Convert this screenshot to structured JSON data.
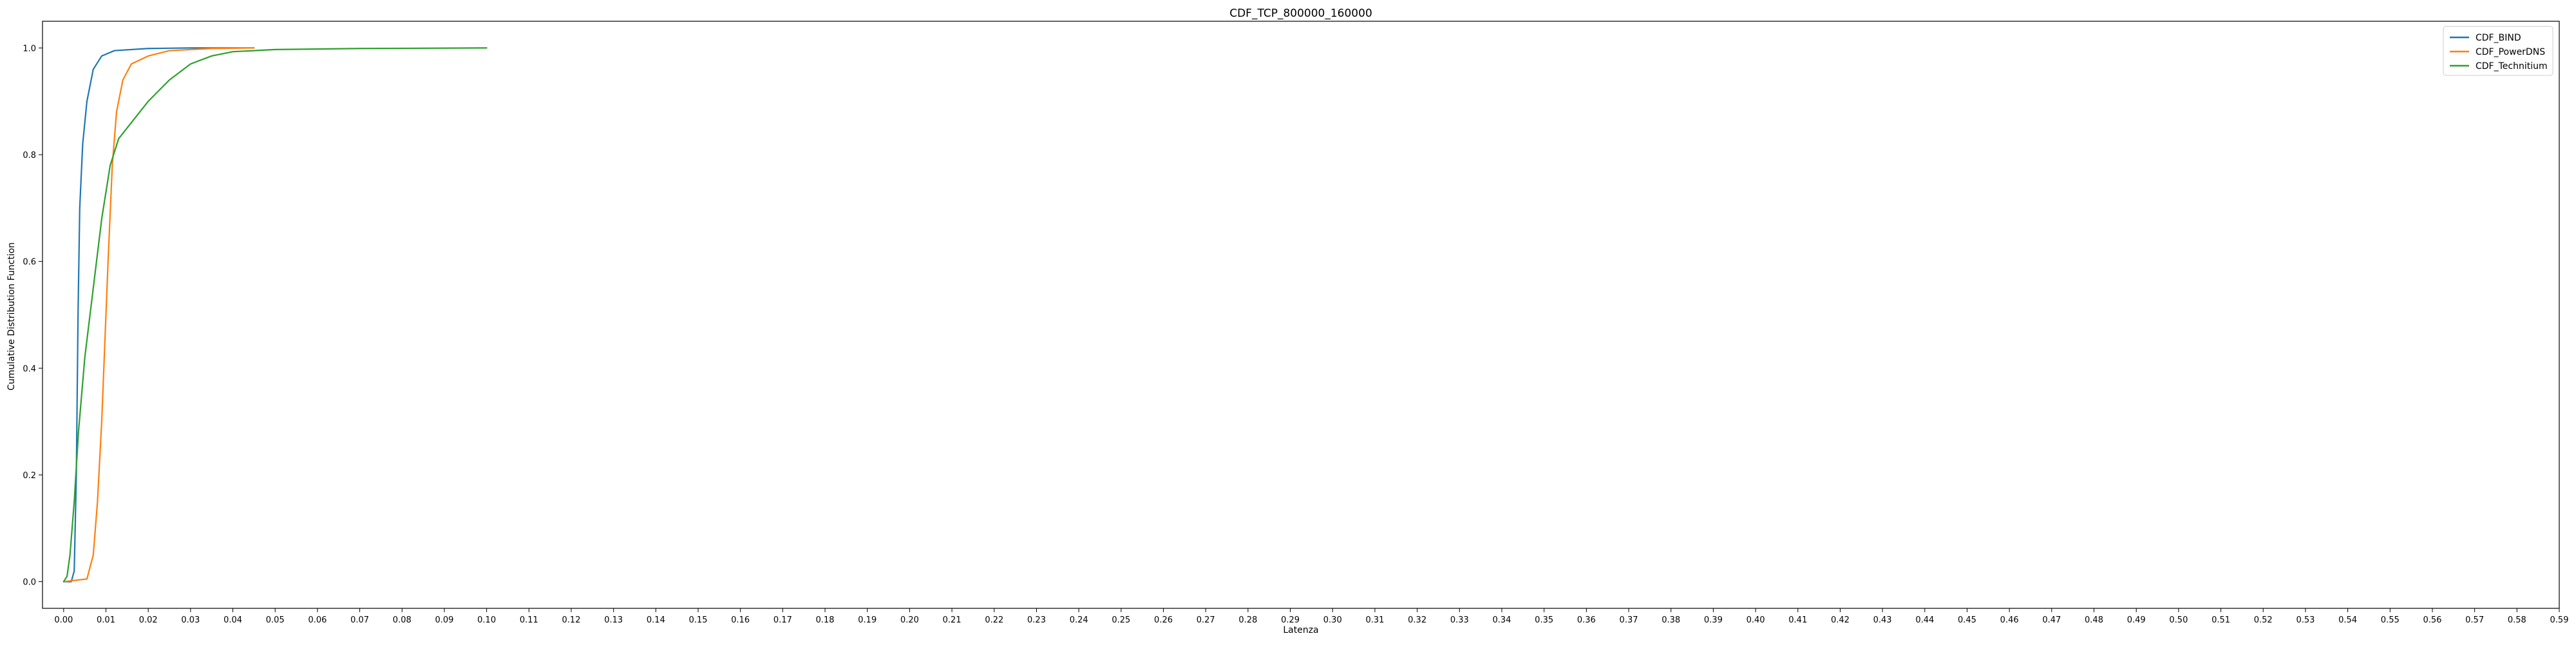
{
  "chart_data": {
    "type": "line",
    "title": "CDF_TCP_800000_160000",
    "xlabel": "Latenza",
    "ylabel": "Cumulative Distribution Function",
    "xlim": [
      -0.005,
      0.59
    ],
    "ylim": [
      -0.05,
      1.05
    ],
    "x_ticks": [
      "0.00",
      "0.01",
      "0.02",
      "0.03",
      "0.04",
      "0.05",
      "0.06",
      "0.07",
      "0.08",
      "0.09",
      "0.10",
      "0.11",
      "0.12",
      "0.13",
      "0.14",
      "0.15",
      "0.16",
      "0.17",
      "0.18",
      "0.19",
      "0.20",
      "0.21",
      "0.22",
      "0.23",
      "0.24",
      "0.25",
      "0.26",
      "0.27",
      "0.28",
      "0.29",
      "0.30",
      "0.31",
      "0.32",
      "0.33",
      "0.34",
      "0.35",
      "0.36",
      "0.37",
      "0.38",
      "0.39",
      "0.40",
      "0.41",
      "0.42",
      "0.43",
      "0.44",
      "0.45",
      "0.46",
      "0.47",
      "0.48",
      "0.49",
      "0.50",
      "0.51",
      "0.52",
      "0.53",
      "0.54",
      "0.55",
      "0.56",
      "0.57",
      "0.58",
      "0.59"
    ],
    "y_ticks": [
      "0.0",
      "0.2",
      "0.4",
      "0.6",
      "0.8",
      "1.0"
    ],
    "grid": false,
    "legend_position": "top-right",
    "series": [
      {
        "name": "CDF_BIND",
        "color": "#1f77b4",
        "points": [
          [
            0.0,
            0.0
          ],
          [
            0.0018,
            0.0
          ],
          [
            0.0025,
            0.02
          ],
          [
            0.003,
            0.2
          ],
          [
            0.0034,
            0.5
          ],
          [
            0.0038,
            0.7
          ],
          [
            0.0045,
            0.82
          ],
          [
            0.0055,
            0.9
          ],
          [
            0.007,
            0.96
          ],
          [
            0.009,
            0.985
          ],
          [
            0.012,
            0.995
          ],
          [
            0.02,
            0.999
          ],
          [
            0.03,
            1.0
          ],
          [
            0.045,
            1.0
          ]
        ]
      },
      {
        "name": "CDF_PowerDNS",
        "color": "#ff7f0e",
        "points": [
          [
            0.0,
            0.0
          ],
          [
            0.0055,
            0.005
          ],
          [
            0.007,
            0.05
          ],
          [
            0.008,
            0.15
          ],
          [
            0.009,
            0.3
          ],
          [
            0.0095,
            0.4
          ],
          [
            0.0105,
            0.6
          ],
          [
            0.0115,
            0.78
          ],
          [
            0.0125,
            0.88
          ],
          [
            0.014,
            0.94
          ],
          [
            0.016,
            0.97
          ],
          [
            0.02,
            0.985
          ],
          [
            0.025,
            0.995
          ],
          [
            0.035,
            0.999
          ],
          [
            0.045,
            1.0
          ]
        ]
      },
      {
        "name": "CDF_Technitium",
        "color": "#2ca02c",
        "points": [
          [
            0.0,
            0.0
          ],
          [
            0.0008,
            0.01
          ],
          [
            0.0015,
            0.05
          ],
          [
            0.0025,
            0.15
          ],
          [
            0.0035,
            0.28
          ],
          [
            0.005,
            0.42
          ],
          [
            0.007,
            0.55
          ],
          [
            0.009,
            0.68
          ],
          [
            0.011,
            0.78
          ],
          [
            0.013,
            0.83
          ],
          [
            0.016,
            0.86
          ],
          [
            0.02,
            0.9
          ],
          [
            0.025,
            0.94
          ],
          [
            0.03,
            0.97
          ],
          [
            0.035,
            0.985
          ],
          [
            0.04,
            0.993
          ],
          [
            0.05,
            0.997
          ],
          [
            0.07,
            0.999
          ],
          [
            0.1,
            1.0
          ]
        ]
      }
    ]
  }
}
